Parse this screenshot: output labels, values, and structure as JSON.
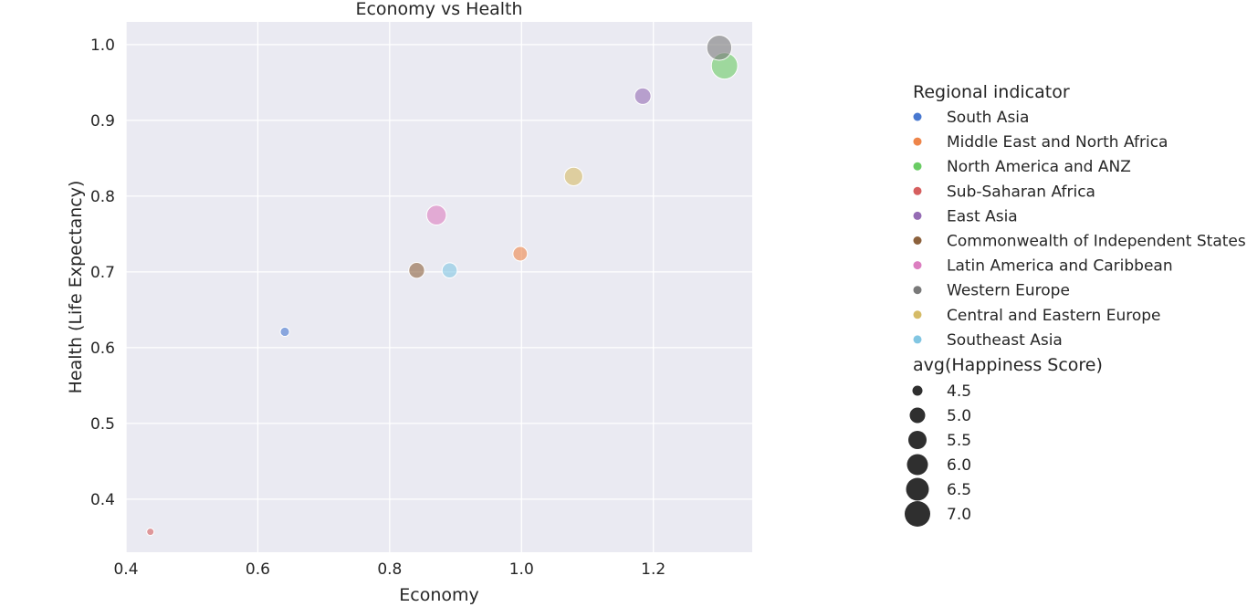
{
  "chart_data": {
    "type": "scatter",
    "title": "Economy vs Health",
    "xlabel": "Economy",
    "ylabel": "Health (Life Expectancy)",
    "xlim": [
      0.4,
      1.35
    ],
    "ylim": [
      0.33,
      1.03
    ],
    "xticks": [
      "0.4",
      "0.6",
      "0.8",
      "1.0",
      "1.2"
    ],
    "yticks": [
      "0.4",
      "0.5",
      "0.6",
      "0.7",
      "0.8",
      "0.9",
      "1.0"
    ],
    "grid": true,
    "legend_placement": "right",
    "series_legend_title": "Regional indicator",
    "size_legend_title": "avg(Happiness Score)",
    "size_legend_values": [
      "4.5",
      "5.0",
      "5.5",
      "6.0",
      "6.5",
      "7.0"
    ],
    "series": [
      {
        "name": "South Asia",
        "color": "#4878d0",
        "x": 0.641,
        "y": 0.621,
        "size": 4.5
      },
      {
        "name": "Middle East and North Africa",
        "color": "#ee854a",
        "x": 0.998,
        "y": 0.724,
        "size": 5.3
      },
      {
        "name": "North America and ANZ",
        "color": "#6acc64",
        "x": 1.308,
        "y": 0.972,
        "size": 7.1
      },
      {
        "name": "Sub-Saharan Africa",
        "color": "#d65f5f",
        "x": 0.437,
        "y": 0.357,
        "size": 4.2
      },
      {
        "name": "East Asia",
        "color": "#956cb4",
        "x": 1.184,
        "y": 0.932,
        "size": 5.6
      },
      {
        "name": "Commonwealth of Independent States",
        "color": "#8c613c",
        "x": 0.841,
        "y": 0.702,
        "size": 5.5
      },
      {
        "name": "Latin America and Caribbean",
        "color": "#dc7ec0",
        "x": 0.871,
        "y": 0.775,
        "size": 6.1
      },
      {
        "name": "Western Europe",
        "color": "#797979",
        "x": 1.3,
        "y": 0.996,
        "size": 6.9
      },
      {
        "name": "Central and Eastern Europe",
        "color": "#d5bb67",
        "x": 1.079,
        "y": 0.826,
        "size": 5.9
      },
      {
        "name": "Southeast Asia",
        "color": "#82c6e2",
        "x": 0.891,
        "y": 0.702,
        "size": 5.4
      }
    ],
    "colors": {
      "plot_bg": "#eaeaf2",
      "grid": "#ffffff",
      "size_legend_marker": "#2f2f2f"
    }
  }
}
